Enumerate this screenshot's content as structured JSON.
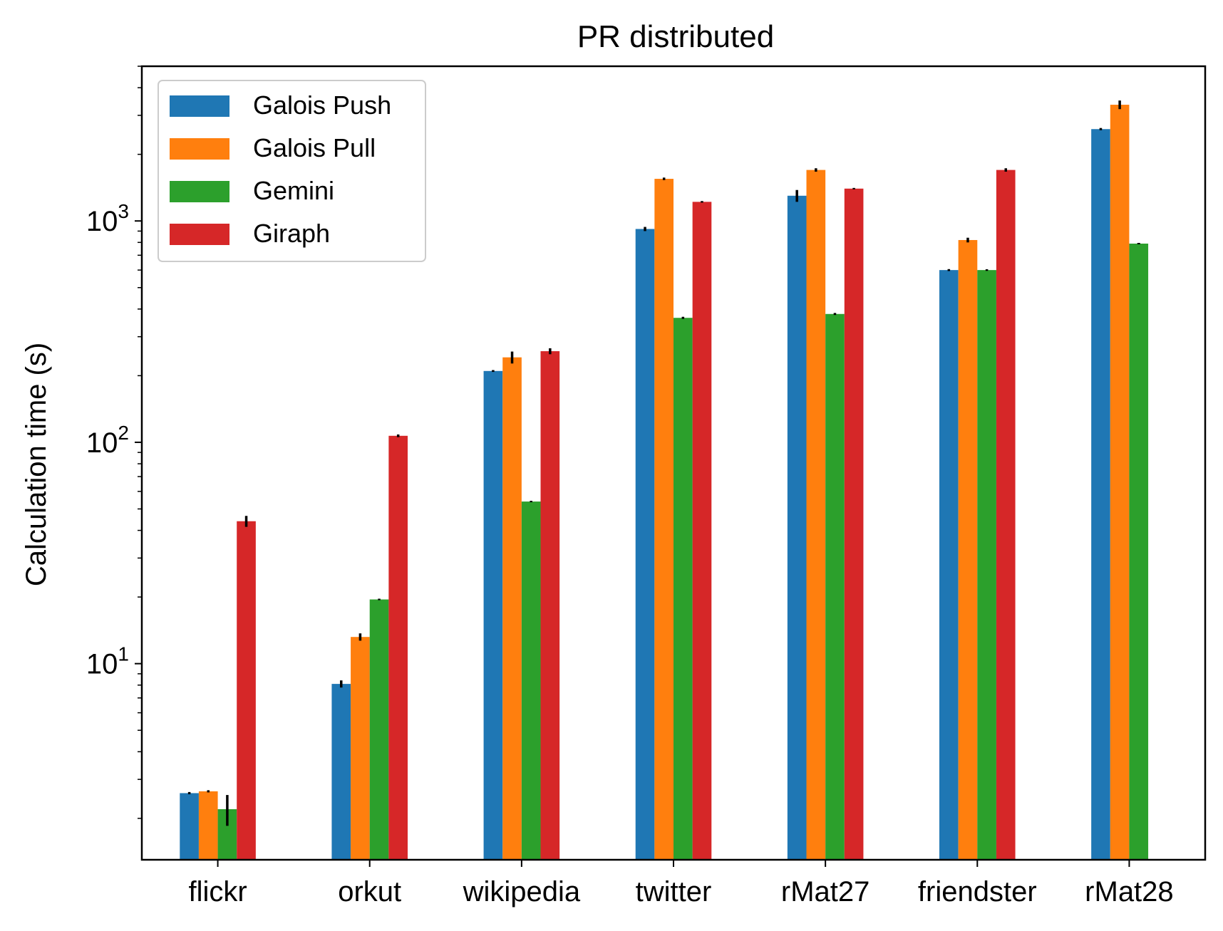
{
  "chart_data": {
    "type": "bar",
    "title": "PR distributed",
    "xlabel": "",
    "ylabel": "Calculation time (s)",
    "yscale": "log",
    "ylim": [
      1.3,
      5000
    ],
    "yticks": [
      {
        "value": 10,
        "base": "10",
        "exp": "1"
      },
      {
        "value": 100,
        "base": "10",
        "exp": "2"
      },
      {
        "value": 1000,
        "base": "10",
        "exp": "3"
      }
    ],
    "categories": [
      "flickr",
      "orkut",
      "wikipedia",
      "twitter",
      "rMat27",
      "friendster",
      "rMat28"
    ],
    "series": [
      {
        "name": "Galois Push",
        "color": "#1f77b4",
        "values": [
          2.6,
          8.1,
          210,
          920,
          1300,
          600,
          2600
        ],
        "errors": [
          0.03,
          0.3,
          2,
          20,
          80,
          6,
          30
        ]
      },
      {
        "name": "Galois Pull",
        "color": "#ff7f0e",
        "values": [
          2.65,
          13.2,
          242,
          1550,
          1700,
          820,
          3350
        ],
        "errors": [
          0.03,
          0.5,
          15,
          20,
          30,
          20,
          150
        ]
      },
      {
        "name": "Gemini",
        "color": "#2ca02c",
        "values": [
          2.2,
          19.5,
          54,
          365,
          380,
          600,
          790
        ],
        "errors": [
          0.35,
          0.15,
          0.4,
          4,
          4,
          5,
          0
        ]
      },
      {
        "name": "Giraph",
        "color": "#d62728",
        "values": [
          44,
          107,
          258,
          1220,
          1400,
          1700,
          null
        ],
        "errors": [
          2.5,
          1.5,
          8,
          10,
          10,
          30,
          0
        ]
      }
    ],
    "legend": {
      "position": "top-left"
    },
    "grid": false
  }
}
